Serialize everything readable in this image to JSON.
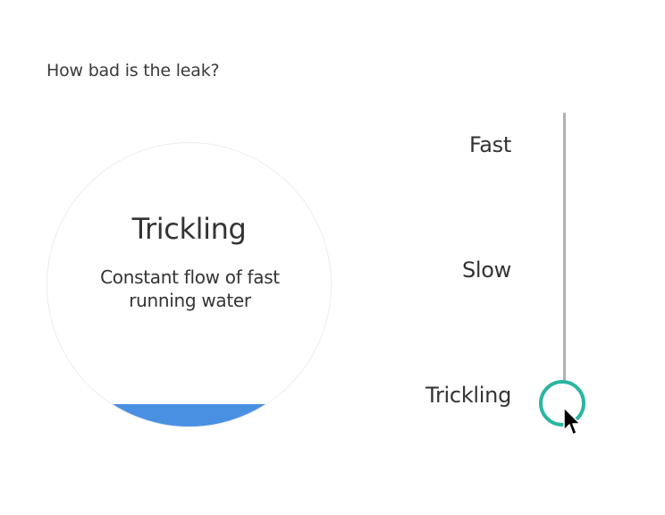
{
  "question": "How bad is the leak?",
  "preview": {
    "title": "Trickling",
    "description": "Constant flow of fast running water",
    "water_level_fraction": 0.08
  },
  "slider": {
    "options": [
      "Fast",
      "Slow",
      "Trickling"
    ],
    "selected": "Trickling",
    "selected_index": 2,
    "thumb_color": "#2bb5a0",
    "track_color": "#b0b0b0"
  },
  "colors": {
    "water": "#4a90e2",
    "text": "#333333"
  },
  "icons": {
    "cursor": "mouse-pointer-icon"
  }
}
